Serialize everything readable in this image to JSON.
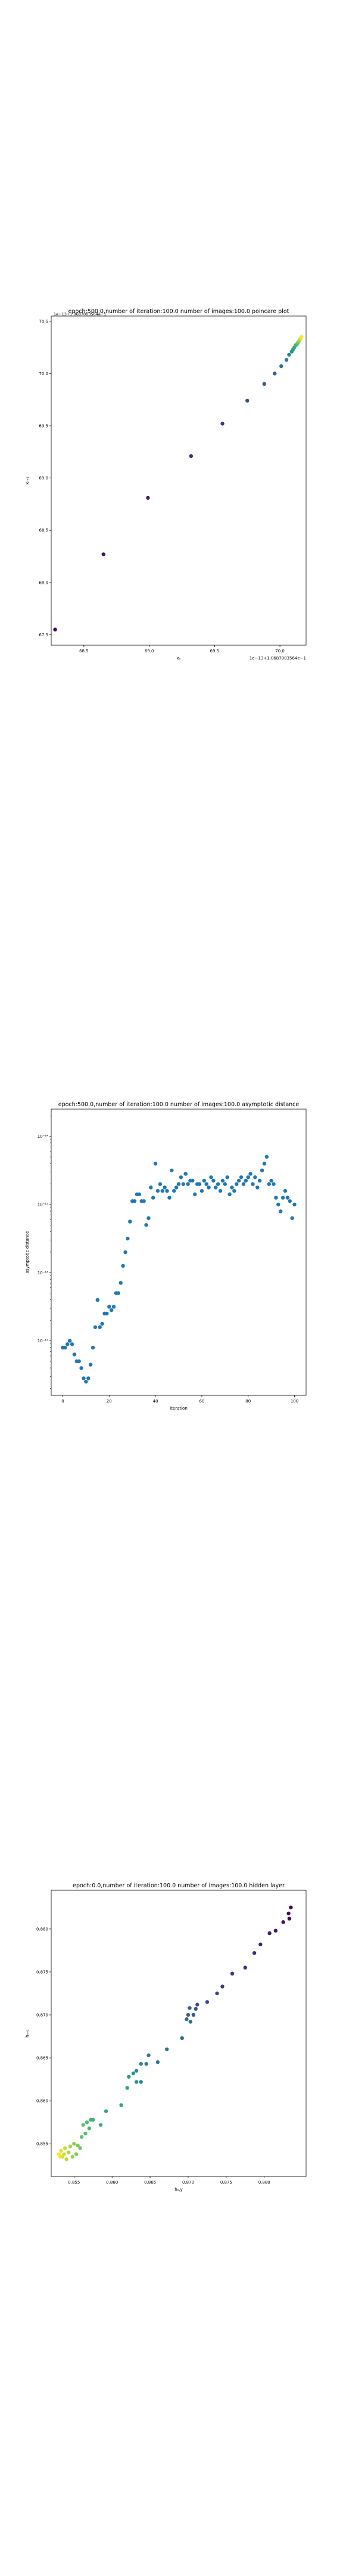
{
  "chart_data": [
    {
      "type": "scatter",
      "title": "epoch:500.0,number of iteration:100.0 number of images:100.0 poincare plot",
      "xlabel": "xₙ",
      "ylabel": "xₙ₊₁",
      "x_offset_label": "1e−13+1.0687003564e−1",
      "y_offset_label": "1e−13+1.0687003564e−1",
      "xlim": [
        68.25,
        70.2
      ],
      "ylim": [
        67.4,
        70.55
      ],
      "xticks": [
        68.5,
        69.0,
        69.5,
        70.0
      ],
      "yticks": [
        67.5,
        68.0,
        68.5,
        69.0,
        69.5,
        70.0,
        70.5
      ],
      "tick_labels_x": [
        "68.5",
        "69.0",
        "69.5",
        "70.0"
      ],
      "tick_labels_y": [
        "67.5",
        "68.0",
        "68.5",
        "69.0",
        "69.5",
        "70.0",
        "70.5"
      ],
      "colormap": [
        "#440154",
        "#3b528b",
        "#21918c",
        "#5ec962",
        "#fde725"
      ],
      "points": [
        {
          "x": 68.28,
          "y": 67.55
        },
        {
          "x": 68.65,
          "y": 68.27
        },
        {
          "x": 68.99,
          "y": 68.81
        },
        {
          "x": 69.32,
          "y": 69.21
        },
        {
          "x": 69.56,
          "y": 69.52
        },
        {
          "x": 69.75,
          "y": 69.74
        },
        {
          "x": 69.88,
          "y": 69.9
        },
        {
          "x": 69.96,
          "y": 70.0
        },
        {
          "x": 70.01,
          "y": 70.07
        },
        {
          "x": 70.05,
          "y": 70.13
        },
        {
          "x": 70.07,
          "y": 70.18
        },
        {
          "x": 70.09,
          "y": 70.21
        },
        {
          "x": 70.1,
          "y": 70.23
        },
        {
          "x": 70.11,
          "y": 70.25
        },
        {
          "x": 70.12,
          "y": 70.27
        },
        {
          "x": 70.13,
          "y": 70.28
        },
        {
          "x": 70.135,
          "y": 70.29
        },
        {
          "x": 70.14,
          "y": 70.3
        },
        {
          "x": 70.145,
          "y": 70.31
        },
        {
          "x": 70.15,
          "y": 70.32
        },
        {
          "x": 70.155,
          "y": 70.33
        },
        {
          "x": 70.16,
          "y": 70.34
        },
        {
          "x": 70.165,
          "y": 70.35
        }
      ]
    },
    {
      "type": "scatter",
      "title": "epoch:500.0,number of iteration:100.0  number of images:100.0 asymptotic distance",
      "xlabel": "iteration",
      "ylabel": "asymptotic distance",
      "xlim": [
        -5,
        105
      ],
      "ylim_log10": [
        -17.8,
        -13.6
      ],
      "xticks": [
        0,
        20,
        40,
        60,
        80,
        100
      ],
      "tick_labels_x": [
        "0",
        "20",
        "40",
        "60",
        "80",
        "100"
      ],
      "yticks_log10": [
        -17,
        -16,
        -15,
        -14
      ],
      "tick_labels_y": [
        "10⁻¹⁷",
        "10⁻¹⁶",
        "10⁻¹⁵",
        "10⁻¹⁴"
      ],
      "color": "#1f77b4",
      "y_log10": [
        -17.1,
        -17.1,
        -17.05,
        -17.0,
        -17.05,
        -17.2,
        -17.3,
        -17.3,
        -17.4,
        -17.55,
        -17.6,
        -17.55,
        -17.35,
        -17.1,
        -16.8,
        -16.4,
        -16.8,
        -16.75,
        -16.6,
        -16.6,
        -16.5,
        -16.55,
        -16.5,
        -16.3,
        -16.3,
        -16.15,
        -15.9,
        -15.7,
        -15.5,
        -15.25,
        -14.95,
        -14.95,
        -14.85,
        -14.85,
        -14.95,
        -14.95,
        -15.3,
        -15.2,
        -14.75,
        -14.9,
        -14.4,
        -14.8,
        -14.7,
        -14.8,
        -14.75,
        -14.8,
        -14.9,
        -14.5,
        -14.8,
        -14.75,
        -14.7,
        -14.6,
        -14.7,
        -14.55,
        -14.7,
        -14.65,
        -14.65,
        -14.85,
        -14.7,
        -14.7,
        -14.8,
        -14.65,
        -14.7,
        -14.75,
        -14.6,
        -14.65,
        -14.75,
        -14.7,
        -14.8,
        -14.65,
        -14.7,
        -14.6,
        -14.85,
        -14.75,
        -14.8,
        -14.7,
        -14.65,
        -14.6,
        -14.7,
        -14.65,
        -14.6,
        -14.55,
        -14.7,
        -14.6,
        -14.75,
        -14.65,
        -14.5,
        -14.4,
        -14.3,
        -14.7,
        -14.65,
        -14.7,
        -14.9,
        -15.0,
        -15.1,
        -14.9,
        -14.8,
        -14.9,
        -14.95,
        -15.2,
        -15.0
      ]
    },
    {
      "type": "scatter",
      "title": "epoch:0.0,number of iteration:100.0  number of images:100.0 hidden layer",
      "xlabel": "hₙ,y",
      "ylabel": "hₙ₊₁",
      "xlim": [
        0.852,
        0.8855
      ],
      "ylim": [
        0.8512,
        0.8845
      ],
      "xticks": [
        0.855,
        0.86,
        0.865,
        0.87,
        0.875,
        0.88
      ],
      "tick_labels_x": [
        "0.855",
        "0.860",
        "0.865",
        "0.870",
        "0.875",
        "0.880"
      ],
      "yticks": [
        0.855,
        0.86,
        0.865,
        0.87,
        0.875,
        0.88
      ],
      "tick_labels_y": [
        "0.855",
        "0.860",
        "0.865",
        "0.870",
        "0.875",
        "0.880"
      ],
      "colormap": [
        "#440154",
        "#3b528b",
        "#21918c",
        "#5ec962",
        "#fde725"
      ],
      "points": [
        {
          "x": 0.8835,
          "y": 0.8825
        },
        {
          "x": 0.8832,
          "y": 0.8818
        },
        {
          "x": 0.8833,
          "y": 0.8812
        },
        {
          "x": 0.8825,
          "y": 0.8808
        },
        {
          "x": 0.8815,
          "y": 0.8798
        },
        {
          "x": 0.8807,
          "y": 0.8795
        },
        {
          "x": 0.8795,
          "y": 0.8782
        },
        {
          "x": 0.8787,
          "y": 0.8772
        },
        {
          "x": 0.8775,
          "y": 0.8755
        },
        {
          "x": 0.8758,
          "y": 0.8748
        },
        {
          "x": 0.8745,
          "y": 0.8733
        },
        {
          "x": 0.8738,
          "y": 0.8725
        },
        {
          "x": 0.8725,
          "y": 0.8715
        },
        {
          "x": 0.8712,
          "y": 0.8712
        },
        {
          "x": 0.871,
          "y": 0.8707
        },
        {
          "x": 0.8707,
          "y": 0.87
        },
        {
          "x": 0.8702,
          "y": 0.8708
        },
        {
          "x": 0.87,
          "y": 0.87
        },
        {
          "x": 0.8698,
          "y": 0.8695
        },
        {
          "x": 0.8703,
          "y": 0.8692
        },
        {
          "x": 0.8692,
          "y": 0.8673
        },
        {
          "x": 0.8672,
          "y": 0.866
        },
        {
          "x": 0.866,
          "y": 0.8645
        },
        {
          "x": 0.8648,
          "y": 0.8653
        },
        {
          "x": 0.8645,
          "y": 0.8643
        },
        {
          "x": 0.8638,
          "y": 0.8643
        },
        {
          "x": 0.8638,
          "y": 0.8622
        },
        {
          "x": 0.8632,
          "y": 0.8635
        },
        {
          "x": 0.8632,
          "y": 0.8622
        },
        {
          "x": 0.8628,
          "y": 0.8632
        },
        {
          "x": 0.8622,
          "y": 0.8628
        },
        {
          "x": 0.862,
          "y": 0.8615
        },
        {
          "x": 0.8612,
          "y": 0.8595
        },
        {
          "x": 0.8592,
          "y": 0.8588
        },
        {
          "x": 0.8585,
          "y": 0.8572
        },
        {
          "x": 0.8575,
          "y": 0.8578
        },
        {
          "x": 0.8572,
          "y": 0.8578
        },
        {
          "x": 0.857,
          "y": 0.8568
        },
        {
          "x": 0.8567,
          "y": 0.8575
        },
        {
          "x": 0.8565,
          "y": 0.8562
        },
        {
          "x": 0.8562,
          "y": 0.8572
        },
        {
          "x": 0.856,
          "y": 0.8558
        },
        {
          "x": 0.8558,
          "y": 0.8545
        },
        {
          "x": 0.8555,
          "y": 0.8548
        },
        {
          "x": 0.8553,
          "y": 0.8538
        },
        {
          "x": 0.855,
          "y": 0.855
        },
        {
          "x": 0.8548,
          "y": 0.8535
        },
        {
          "x": 0.8545,
          "y": 0.8547
        },
        {
          "x": 0.8543,
          "y": 0.854
        },
        {
          "x": 0.854,
          "y": 0.8532
        },
        {
          "x": 0.8538,
          "y": 0.8545
        },
        {
          "x": 0.8537,
          "y": 0.8538
        },
        {
          "x": 0.8535,
          "y": 0.8535
        },
        {
          "x": 0.8533,
          "y": 0.8542
        },
        {
          "x": 0.8532,
          "y": 0.8535
        },
        {
          "x": 0.853,
          "y": 0.8538
        }
      ]
    }
  ]
}
